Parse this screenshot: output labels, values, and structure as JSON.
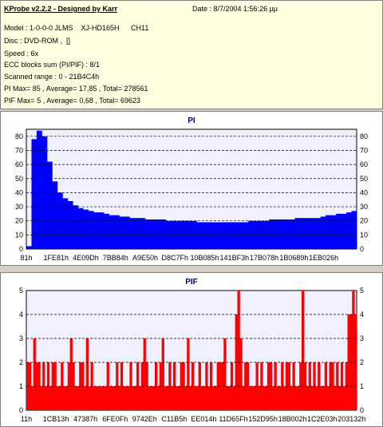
{
  "info": {
    "title": "KProbe v2.2.2 - Designed by Karr",
    "date": "Date : 8/7/2004 1:56:26 μμ",
    "model": "Model : 1-0-0-0 JLMS    XJ-HD165H",
    "model_ch": "CH11",
    "disc": "Disc : DVD-ROM ,  []",
    "speed": "Speed : 6x",
    "ecc": "ECC blocks sum (PI/PIF) : 8/1",
    "range": "Scanned range : 0 - 21B4C4h",
    "pi_stats": "PI Max= 85 , Average= 17,85 , Total= 278561",
    "pif_stats": "PIF Max= 5 , Average= 0,68 , Total= 69623"
  },
  "colors": {
    "pi": "#0000ff",
    "pif": "#ff0000",
    "title": "#000080",
    "plot_bg": "#f0f0ff",
    "grid": "#000000"
  },
  "chart_data": [
    {
      "type": "bar",
      "title": "PI",
      "ylim": [
        0,
        85
      ],
      "yticks": [
        0,
        10,
        20,
        30,
        40,
        50,
        60,
        70,
        80
      ],
      "xticks": [
        "81h",
        "1FE81h",
        "4E09Dh",
        "7BB84h",
        "A9E50h",
        "D8C7Fh",
        "10B085h",
        "141BF3h",
        "17B078h",
        "1B0689h",
        "1EB026h"
      ],
      "grid": true,
      "series": [
        {
          "values": [
            2,
            78,
            84,
            80,
            62,
            48,
            40,
            36,
            34,
            31,
            29,
            28,
            27,
            26,
            26,
            25,
            24,
            24,
            23,
            23,
            22,
            22,
            22,
            21,
            21,
            21,
            21,
            20,
            20,
            20,
            20,
            20,
            20,
            19,
            19,
            19,
            19,
            19,
            19,
            19,
            19,
            19,
            19,
            20,
            20,
            20,
            20,
            21,
            21,
            21,
            21,
            21,
            22,
            22,
            22,
            22,
            22,
            23,
            24,
            24,
            25,
            25,
            26,
            27
          ]
        }
      ]
    },
    {
      "type": "bar",
      "title": "PIF",
      "ylim": [
        0,
        5
      ],
      "yticks": [
        0,
        1,
        2,
        3,
        4,
        5
      ],
      "xticks": [
        "11h",
        "1CB13h",
        "47387h",
        "6FE0Fh",
        "9742Eh",
        "C11B5h",
        "EE014h",
        "11D65Fh",
        "152D95h",
        "18B002h",
        "1C2E03h",
        "203132h"
      ],
      "grid": true,
      "series": [
        {
          "values": [
            2,
            2,
            1,
            3,
            2,
            2,
            1,
            2,
            1,
            2,
            1,
            2,
            2,
            1,
            1,
            2,
            1,
            1,
            2,
            3,
            2,
            1,
            1,
            2,
            2,
            1,
            3,
            1,
            2,
            1,
            1,
            1,
            1,
            1,
            1,
            2,
            1,
            1,
            1,
            2,
            1,
            2,
            1,
            1,
            1,
            2,
            1,
            1,
            2,
            1,
            2,
            3,
            2,
            1,
            1,
            1,
            2,
            1,
            2,
            3,
            1,
            1,
            2,
            1,
            2,
            1,
            1,
            2,
            2,
            1,
            3,
            1,
            2,
            1,
            1,
            2,
            1,
            1,
            2,
            1,
            2,
            1,
            1,
            2,
            2,
            2,
            3,
            1,
            1,
            2,
            1,
            4,
            5,
            3,
            1,
            2,
            2,
            1,
            1,
            1,
            2,
            1,
            2,
            1,
            1,
            2,
            2,
            1,
            2,
            1,
            1,
            2,
            1,
            2,
            2,
            1,
            2,
            1,
            1,
            2,
            5,
            2,
            1,
            2,
            1,
            2,
            1,
            2,
            1,
            1,
            2,
            1,
            2,
            2,
            1,
            2,
            1,
            2,
            1,
            2,
            4,
            4,
            5,
            4
          ]
        }
      ]
    }
  ]
}
